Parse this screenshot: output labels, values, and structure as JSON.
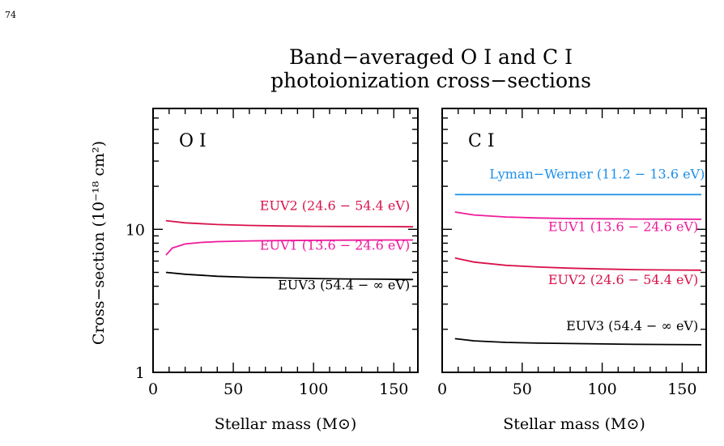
{
  "page": {
    "number": "74"
  },
  "chart_data": {
    "type": "line",
    "title": "Band−averaged O I and C I\nphotoionization cross−sections",
    "ylabel": "Cross−section (10⁻¹⁸ cm²)",
    "yscale": "log",
    "ylim": [
      1,
      70
    ],
    "yticks": [
      1,
      10
    ],
    "xlim": [
      0,
      165
    ],
    "xticks": [
      0,
      50,
      100,
      150
    ],
    "colors": {
      "euv1": "#ee1a9c",
      "euv2": "#d8124a",
      "euv3": "#000000",
      "lw": "#1b8fe8"
    },
    "panels": [
      {
        "label": "O I",
        "xlabel": "Stellar mass (M⊙)",
        "series": [
          {
            "name": "EUV2 (24.6 − 54.4 eV)",
            "color_key": "euv2",
            "x": [
              8,
              20,
              40,
              60,
              80,
              100,
              120,
              140,
              162
            ],
            "y": [
              11.5,
              11.1,
              10.8,
              10.65,
              10.55,
              10.5,
              10.47,
              10.45,
              10.42
            ]
          },
          {
            "name": "EUV1 (13.6 − 24.6 eV)",
            "color_key": "euv1",
            "x": [
              8,
              12,
              20,
              30,
              40,
              60,
              80,
              100,
              120,
              140,
              162
            ],
            "y": [
              6.6,
              7.4,
              7.9,
              8.1,
              8.2,
              8.3,
              8.35,
              8.38,
              8.4,
              8.42,
              8.42
            ]
          },
          {
            "name": "EUV3 (54.4 − ∞ eV)",
            "color_key": "euv3",
            "x": [
              8,
              20,
              40,
              60,
              80,
              100,
              120,
              140,
              162
            ],
            "y": [
              5.0,
              4.85,
              4.7,
              4.62,
              4.57,
              4.53,
              4.5,
              4.48,
              4.46
            ]
          }
        ]
      },
      {
        "label": "C I",
        "xlabel": "Stellar mass (M⊙)",
        "series": [
          {
            "name": "Lyman−Werner (11.2 − 13.6 eV)",
            "color_key": "lw",
            "x": [
              8,
              40,
              80,
              120,
              162
            ],
            "y": [
              17.5,
              17.5,
              17.5,
              17.5,
              17.5
            ]
          },
          {
            "name": "EUV1 (13.6 − 24.6 eV)",
            "color_key": "euv1",
            "x": [
              8,
              20,
              40,
              60,
              80,
              100,
              120,
              140,
              162
            ],
            "y": [
              13.2,
              12.6,
              12.2,
              12.0,
              11.9,
              11.85,
              11.8,
              11.78,
              11.75
            ]
          },
          {
            "name": "EUV2 (24.6 − 54.4 eV)",
            "color_key": "euv2",
            "x": [
              8,
              20,
              40,
              60,
              80,
              100,
              120,
              140,
              162
            ],
            "y": [
              6.3,
              5.9,
              5.6,
              5.45,
              5.35,
              5.28,
              5.23,
              5.2,
              5.18
            ]
          },
          {
            "name": "EUV3 (54.4 − ∞ eV)",
            "color_key": "euv3",
            "x": [
              8,
              20,
              40,
              60,
              80,
              100,
              120,
              140,
              162
            ],
            "y": [
              1.72,
              1.66,
              1.62,
              1.6,
              1.59,
              1.58,
              1.57,
              1.565,
              1.56
            ]
          }
        ]
      }
    ]
  }
}
